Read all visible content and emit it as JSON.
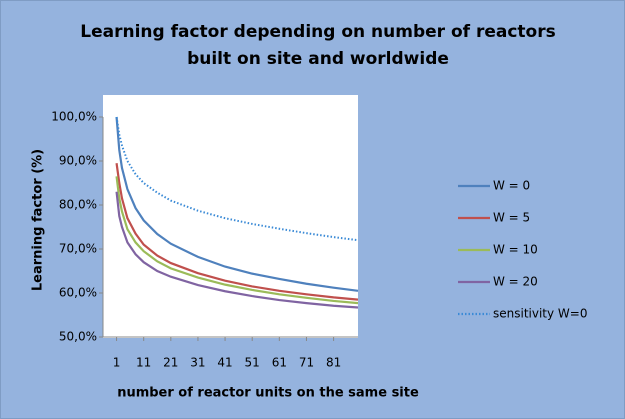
{
  "chart_data": {
    "type": "line",
    "title": [
      "Learning factor depending on number of reactors",
      "built on site and worldwide"
    ],
    "x_label": "number of reactor units on the same site",
    "y_label": "Learning factor (%)",
    "x": [
      1,
      2,
      3,
      5,
      8,
      11,
      16,
      21,
      31,
      41,
      51,
      61,
      71,
      81,
      90
    ],
    "xlim": [
      -4,
      90
    ],
    "xticks": [
      1,
      11,
      21,
      31,
      41,
      51,
      61,
      71,
      81
    ],
    "ylim": [
      50,
      100
    ],
    "yticks": [
      {
        "value": 50,
        "label": "50,0%"
      },
      {
        "value": 60,
        "label": "60,0%"
      },
      {
        "value": 70,
        "label": "70,0%"
      },
      {
        "value": 80,
        "label": "80,0%"
      },
      {
        "value": 90,
        "label": "90,0%"
      },
      {
        "value": 100,
        "label": "100,0%"
      }
    ],
    "grid": false,
    "legend": "right",
    "series": [
      {
        "name": "W = 0",
        "color": "#4f81bd",
        "line_style": "solid",
        "values": [
          100,
          92.5,
          88.4,
          83.6,
          79.3,
          76.5,
          73.4,
          71.2,
          68.2,
          66.0,
          64.4,
          63.2,
          62.1,
          61.2,
          60.5
        ]
      },
      {
        "name": "W = 5",
        "color": "#c0504d",
        "line_style": "solid",
        "values": [
          89.5,
          85,
          81.5,
          77,
          73.5,
          71,
          68.5,
          66.8,
          64.5,
          62.8,
          61.5,
          60.5,
          59.7,
          59,
          58.5
        ]
      },
      {
        "name": "W = 10",
        "color": "#9bbb59",
        "line_style": "solid",
        "values": [
          86.5,
          81.5,
          78.5,
          74.5,
          71.5,
          69.5,
          67.2,
          65.6,
          63.5,
          61.9,
          60.7,
          59.7,
          58.9,
          58.2,
          57.7
        ]
      },
      {
        "name": "W = 20",
        "color": "#8064a2",
        "line_style": "solid",
        "values": [
          83,
          77.5,
          75,
          71.5,
          68.8,
          67,
          65,
          63.7,
          61.8,
          60.4,
          59.3,
          58.4,
          57.7,
          57.1,
          56.7
        ]
      },
      {
        "name": "sensitivity W=0",
        "color": "#3a8ad6",
        "line_style": "dotted",
        "values": [
          100,
          96,
          93.5,
          90,
          87,
          85,
          82.8,
          81,
          78.7,
          77,
          75.7,
          74.6,
          73.6,
          72.7,
          72
        ]
      }
    ]
  }
}
